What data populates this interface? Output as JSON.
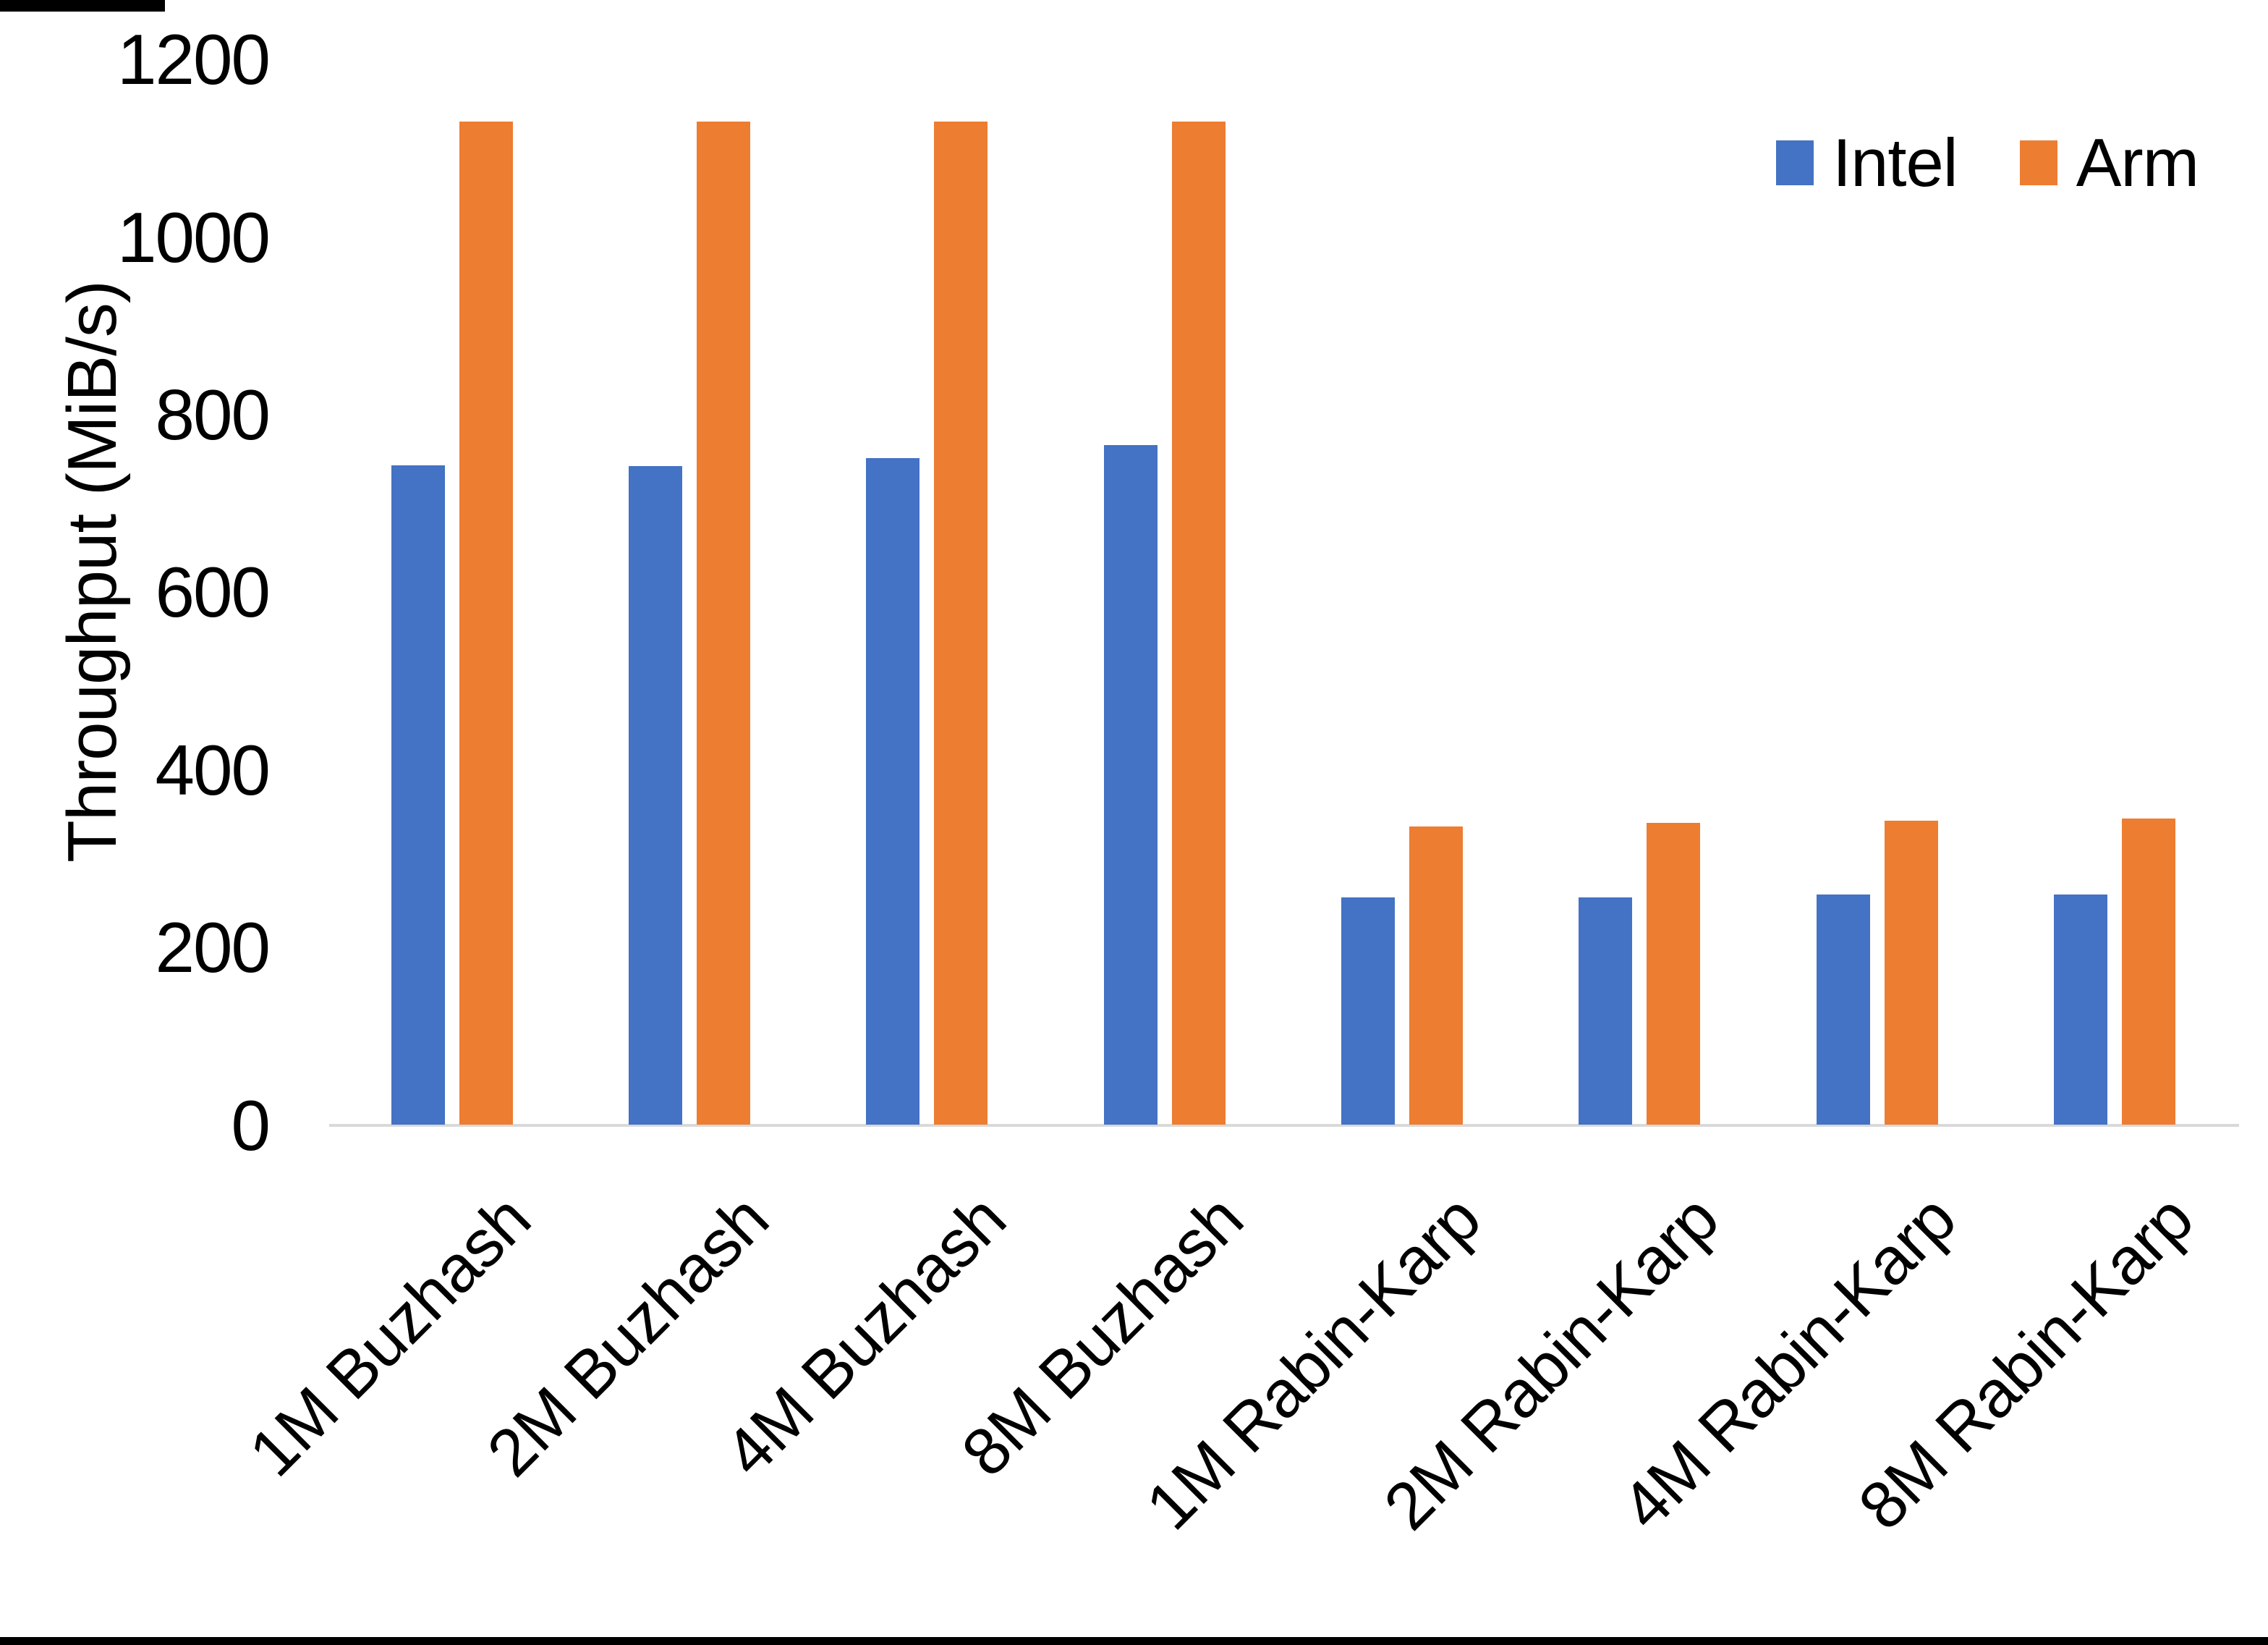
{
  "chart_data": {
    "type": "bar",
    "title": "",
    "xlabel": "",
    "ylabel": "Throughput (MiB/s)",
    "categories": [
      "1M Buzhash",
      "2M Buzhash",
      "4M Buzhash",
      "8M Buzhash",
      "1M Rabin-Karp",
      "2M Rabin-Karp",
      "4M Rabin-Karp",
      "8M Rabin-Karp"
    ],
    "series": [
      {
        "name": "Intel",
        "color": "#4472C4",
        "values": [
          743,
          742,
          751,
          766,
          256,
          256,
          260,
          260
        ]
      },
      {
        "name": "Arm",
        "color": "#ED7D31",
        "values": [
          1130,
          1130,
          1130,
          1130,
          336,
          340,
          343,
          345
        ]
      }
    ],
    "ylim": [
      0,
      1200
    ],
    "yticks": [
      0,
      200,
      400,
      600,
      800,
      1000,
      1200
    ],
    "grid": false,
    "legend_position": "top-right",
    "axis_line_color": "#D9D9D9",
    "text_color": "#000000"
  }
}
